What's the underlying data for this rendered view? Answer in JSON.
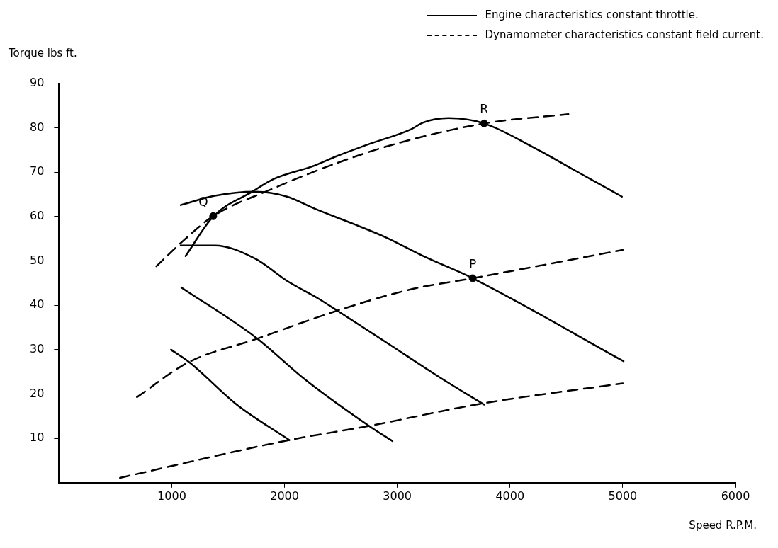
{
  "chart_data": {
    "type": "line",
    "xlabel": "Speed R.P.M.",
    "ylabel": "Torque lbs ft.",
    "xlim": [
      0,
      6000
    ],
    "xticks": [
      1000,
      2000,
      3000,
      4000,
      5000,
      6000
    ],
    "ylim": [
      0,
      90
    ],
    "yticks": [
      10,
      20,
      30,
      40,
      50,
      60,
      70,
      80,
      90
    ],
    "grid": false,
    "legend": "top right",
    "series": [
      {
        "name": "Engine characteristics constant throttle.",
        "type": "line",
        "line_style": "solid",
        "color": "#000000",
        "x": [
          1122,
          1370,
          1712,
          1906,
          2266,
          2460,
          2734,
          3122,
          3230,
          3453,
          3770,
          4216,
          4576,
          4993
        ],
        "values": [
          51.1,
          60.1,
          65.6,
          68.5,
          71.5,
          73.6,
          76.2,
          79.7,
          81.2,
          82.2,
          81.0,
          75.5,
          70.4,
          64.5
        ]
      },
      {
        "type": "line",
        "line_style": "solid",
        "color": "#000000",
        "x": [
          1079,
          1381,
          1741,
          2022,
          2266,
          2626,
          2899,
          3230,
          3669,
          5007
        ],
        "values": [
          62.6,
          64.7,
          65.6,
          64.5,
          61.8,
          58.2,
          55.3,
          51.1,
          46.1,
          27.4
        ]
      },
      {
        "type": "line",
        "line_style": "solid",
        "color": "#000000",
        "x": [
          1079,
          1381,
          1741,
          2022,
          2295,
          2468,
          2899,
          3374,
          3770
        ],
        "values": [
          53.5,
          53.5,
          50.5,
          45.5,
          41.6,
          38.8,
          31.7,
          23.8,
          17.6
        ]
      },
      {
        "type": "line",
        "line_style": "solid",
        "color": "#000000",
        "x": [
          1086,
          1748,
          2180,
          2755,
          2957
        ],
        "values": [
          44.0,
          32.7,
          23.3,
          12.7,
          9.4
        ]
      },
      {
        "type": "line",
        "line_style": "solid",
        "color": "#000000",
        "x": [
          993,
          1158,
          1576,
          2043
        ],
        "values": [
          30.0,
          27.1,
          17.6,
          9.6
        ]
      },
      {
        "name": "Dynamometer characteristics constant field current.",
        "type": "line",
        "line_style": "dashed",
        "color": "#000000",
        "x": [
          863,
          1108,
          1367,
          1878,
          2403,
          2957,
          3770,
          4518
        ],
        "values": [
          48.8,
          54.7,
          60.1,
          66.1,
          71.5,
          76.2,
          81.0,
          83.1
        ]
      },
      {
        "type": "line",
        "line_style": "dashed",
        "color": "#000000",
        "x": [
          691,
          1144,
          1748,
          2468,
          3137,
          3669,
          5000
        ],
        "values": [
          19.3,
          27.1,
          32.4,
          38.8,
          43.7,
          46.1,
          52.5
        ]
      },
      {
        "type": "line",
        "line_style": "dashed",
        "color": "#000000",
        "x": [
          540,
          2036,
          2727,
          3763,
          5000
        ],
        "values": [
          1.1,
          9.6,
          12.7,
          17.9,
          22.4
        ]
      },
      {
        "type": "scatter",
        "marker": "circle",
        "color": "#000000",
        "x": [
          1367,
          3669,
          3770
        ],
        "values": [
          60.1,
          46.1,
          81.0
        ]
      }
    ],
    "annotations": [
      {
        "text": "Q",
        "x": 1367,
        "y": 60.1
      },
      {
        "text": "P",
        "x": 3669,
        "y": 46.1
      },
      {
        "text": "R",
        "x": 3770,
        "y": 81.0
      }
    ]
  }
}
